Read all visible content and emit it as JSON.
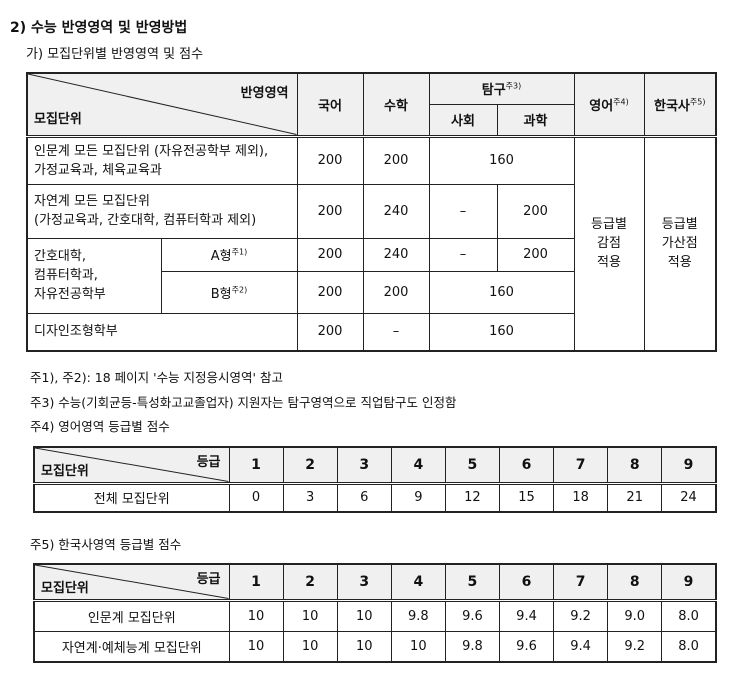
{
  "heading": "2) 수능 반영영역 및 반영방법",
  "subheading": "가) 모집단위별 반영영역 및 점수",
  "table1": {
    "corner_top": "반영영역",
    "corner_bottom": "모집단위",
    "cols": {
      "korean": "국어",
      "math": "수학",
      "inquiry": "탐구",
      "inquiry_note": "주3)",
      "social": "사회",
      "science": "과학",
      "english": "영어",
      "english_note": "주4)",
      "history": "한국사",
      "history_note": "주5)"
    },
    "rows": [
      {
        "unit": "인문계 모든 모집단위 (자유전공학부 제외),\n가정교육과, 체육교육과",
        "korean": "200",
        "math": "200",
        "inquiry": "160"
      },
      {
        "unit": "자연계 모든 모집단위\n(가정교육과, 간호대학, 컴퓨터학과 제외)",
        "korean": "200",
        "math": "240",
        "social": "–",
        "science": "200"
      },
      {
        "unit": "간호대학,\n컴퓨터학과,\n자유전공학부",
        "type": "A형",
        "type_note": "주1)",
        "korean": "200",
        "math": "240",
        "social": "–",
        "science": "200"
      },
      {
        "type": "B형",
        "type_note": "주2)",
        "korean": "200",
        "math": "200",
        "inquiry": "160"
      },
      {
        "unit": "디자인조형학부",
        "korean": "200",
        "math": "–",
        "inquiry": "160"
      }
    ],
    "english_method": "등급별\n감점\n적용",
    "history_method": "등급별\n가산점\n적용"
  },
  "notes": [
    "주1), 주2): 18 페이지 '수능 지정응시영역' 참고",
    "주3) 수능(기회균등-특성화고교졸업자) 지원자는 탐구영역으로 직업탐구도 인정함",
    "주4) 영어영역 등급별 점수"
  ],
  "table2": {
    "corner_top": "등급",
    "corner_bottom": "모집단위",
    "grades": [
      "1",
      "2",
      "3",
      "4",
      "5",
      "6",
      "7",
      "8",
      "9"
    ],
    "rows": [
      {
        "unit": "전체  모집단위",
        "scores": [
          "0",
          "3",
          "6",
          "9",
          "12",
          "15",
          "18",
          "21",
          "24"
        ]
      }
    ]
  },
  "note5": "주5) 한국사영역 등급별 점수",
  "table3": {
    "corner_top": "등급",
    "corner_bottom": "모집단위",
    "grades": [
      "1",
      "2",
      "3",
      "4",
      "5",
      "6",
      "7",
      "8",
      "9"
    ],
    "rows": [
      {
        "unit": "인문계  모집단위",
        "scores": [
          "10",
          "10",
          "10",
          "9.8",
          "9.6",
          "9.4",
          "9.2",
          "9.0",
          "8.0"
        ]
      },
      {
        "unit": "자연계·예체능계  모집단위",
        "scores": [
          "10",
          "10",
          "10",
          "10",
          "9.8",
          "9.6",
          "9.4",
          "9.2",
          "8.0"
        ]
      }
    ]
  }
}
